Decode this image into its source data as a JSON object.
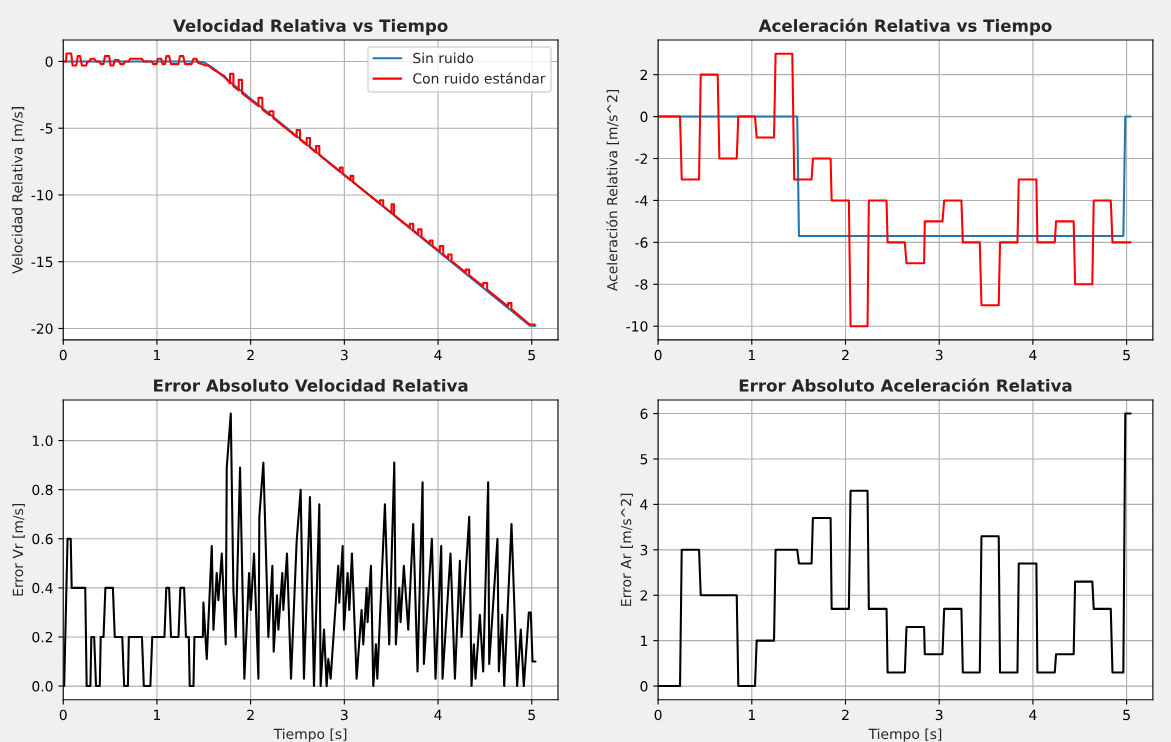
{
  "chart_data": [
    {
      "type": "line",
      "title": "Velocidad Relativa vs Tiempo",
      "ylabel": "Velocidad Relativa [m/s]",
      "xlim": [
        0,
        5.28
      ],
      "ylim": [
        -20.85,
        1.6
      ],
      "xticks": [
        0,
        1,
        2,
        3,
        4,
        5
      ],
      "yticks": [
        -20,
        -15,
        -10,
        -5,
        0
      ],
      "grid": true,
      "legend": "top right",
      "series": [
        {
          "name": "Sin ruido",
          "color": "#1f77b4",
          "x": [
            0,
            1.4,
            1.5,
            1.6,
            4.98,
            5.04
          ],
          "values": [
            0,
            0,
            -0.05,
            -0.5,
            -19.8,
            -19.8
          ]
        },
        {
          "name": "Con ruido estándar",
          "color": "#ff0000",
          "x": [
            0,
            0.03,
            0.035,
            0.085,
            0.1,
            0.14,
            0.155,
            0.18,
            0.2,
            0.245,
            0.26,
            0.28,
            0.295,
            0.33,
            0.35,
            0.385,
            0.4,
            0.43,
            0.445,
            0.49,
            0.505,
            0.535,
            0.55,
            0.59,
            0.61,
            0.645,
            0.66,
            0.7,
            0.715,
            0.84,
            0.857,
            0.945,
            0.96,
            0.995,
            1.01,
            1.045,
            1.06,
            1.085,
            1.1,
            1.13,
            1.15,
            1.23,
            1.245,
            1.28,
            1.3,
            1.37,
            1.39,
            1.42,
            1.44,
            1.52,
            1.55,
            1.6,
            1.72,
            1.78,
            1.78,
            1.816,
            1.816,
            1.873,
            1.873,
            1.908,
            1.908,
            2.083,
            2.083,
            2.125,
            2.125,
            2.2,
            2.2,
            2.243,
            2.243,
            2.491,
            2.491,
            2.527,
            2.527,
            2.598,
            2.598,
            2.633,
            2.633,
            2.697,
            2.697,
            2.733,
            2.733,
            2.953,
            2.953,
            2.982,
            2.982,
            3.067,
            3.067,
            3.095,
            3.095,
            3.38,
            3.38,
            3.415,
            3.415,
            3.504,
            3.504,
            3.529,
            3.529,
            3.699,
            3.699,
            3.735,
            3.735,
            3.788,
            3.788,
            3.824,
            3.824,
            3.913,
            3.913,
            3.941,
            3.941,
            4.019,
            4.019,
            4.055,
            4.055,
            4.108,
            4.108,
            4.144,
            4.144,
            4.296,
            4.296,
            4.332,
            4.332,
            4.481,
            4.481,
            4.524,
            4.524,
            4.748,
            4.748,
            4.783,
            4.783,
            4.979,
            5.032
          ],
          "values": [
            0,
            0,
            0.6,
            0.6,
            -0.3,
            -0.3,
            0.4,
            0.4,
            -0.3,
            -0.3,
            0,
            0,
            0.2,
            0.2,
            0,
            0,
            -0.2,
            -0.2,
            0.4,
            0.4,
            -0.3,
            -0.3,
            0.1,
            0.1,
            -0.2,
            -0.2,
            0,
            0,
            0.2,
            0.2,
            0,
            0,
            -0.2,
            -0.2,
            0.2,
            0.2,
            -0.2,
            -0.2,
            0.4,
            0.4,
            -0.2,
            -0.2,
            0.4,
            0.4,
            -0.2,
            -0.2,
            0.2,
            0.2,
            -0.1,
            -0.3,
            -0.3,
            -0.6,
            -1.1,
            -1.65,
            -0.93,
            -0.93,
            -1.85,
            -2.17,
            -1.38,
            -1.38,
            -2.37,
            -3.35,
            -2.73,
            -2.73,
            -3.59,
            -4.01,
            -3.73,
            -3.73,
            -4.25,
            -5.65,
            -5.14,
            -5.14,
            -5.85,
            -6.25,
            -5.74,
            -5.74,
            -6.45,
            -6.81,
            -6.34,
            -6.34,
            -7.01,
            -8.25,
            -7.94,
            -7.94,
            -8.41,
            -8.89,
            -8.57,
            -8.57,
            -9.05,
            -10.65,
            -10.4,
            -10.4,
            -10.85,
            -11.35,
            -10.7,
            -10.7,
            -11.49,
            -12.45,
            -12.16,
            -12.16,
            -12.65,
            -12.95,
            -12.58,
            -12.58,
            -13.15,
            -13.65,
            -13.41,
            -13.41,
            -13.81,
            -14.25,
            -13.83,
            -13.83,
            -14.45,
            -14.75,
            -14.46,
            -14.46,
            -14.95,
            -15.81,
            -15.59,
            -15.59,
            -16.01,
            -16.85,
            -16.59,
            -16.59,
            -17.09,
            -18.35,
            -18.1,
            -18.1,
            -18.55,
            -19.7,
            -19.7
          ]
        }
      ]
    },
    {
      "type": "line",
      "title": "Aceleración Relativa vs Tiempo",
      "ylabel": "Aceleración Relativa [m/s^2]",
      "xlim": [
        0,
        5.28
      ],
      "ylim": [
        -10.65,
        3.65
      ],
      "xticks": [
        0,
        1,
        2,
        3,
        4,
        5
      ],
      "yticks": [
        -10,
        -8,
        -6,
        -4,
        -2,
        0,
        2
      ],
      "grid": true,
      "series": [
        {
          "color": "#1f77b4",
          "x": [
            0,
            1.485,
            1.503,
            4.965,
            4.986,
            5.043
          ],
          "values": [
            0,
            0,
            -5.7,
            -5.7,
            0,
            0
          ]
        },
        {
          "color": "#ff0000",
          "x": [
            0,
            0.234,
            0.252,
            0.437,
            0.455,
            0.636,
            0.654,
            0.839,
            0.856,
            1.034,
            1.052,
            1.237,
            1.254,
            1.432,
            1.453,
            1.638,
            1.652,
            1.841,
            1.852,
            2.036,
            2.054,
            2.235,
            2.249,
            2.438,
            2.449,
            2.633,
            2.651,
            2.839,
            2.846,
            3.035,
            3.053,
            3.237,
            3.252,
            3.433,
            3.451,
            3.635,
            3.649,
            3.835,
            3.849,
            4.037,
            4.048,
            4.233,
            4.247,
            4.435,
            4.45,
            4.634,
            4.649,
            4.831,
            4.849,
            5.043
          ],
          "values": [
            0,
            0,
            -3,
            -3,
            2,
            2,
            -2,
            -2,
            0,
            0,
            -1,
            -1,
            3,
            3,
            -3,
            -3,
            -2,
            -2,
            -4,
            -4,
            -10,
            -10,
            -4,
            -4,
            -6,
            -6,
            -7,
            -7,
            -5,
            -5,
            -4,
            -4,
            -6,
            -6,
            -9,
            -9,
            -6,
            -6,
            -3,
            -3,
            -6,
            -6,
            -5,
            -5,
            -8,
            -8,
            -4,
            -4,
            -6,
            -6
          ]
        }
      ]
    },
    {
      "type": "line",
      "title": "Error Absoluto Velocidad Relativa",
      "xlabel": "Tiempo [s]",
      "ylabel": "Error Vr [m/s]",
      "xlim": [
        0,
        5.28
      ],
      "ylim": [
        -0.0555,
        1.1655
      ],
      "xticks": [
        0,
        1,
        2,
        3,
        4,
        5
      ],
      "yticks": [
        {
          "value": 0,
          "label": "0.0"
        },
        0.2,
        0.4,
        0.6,
        0.8,
        {
          "value": 1,
          "label": "1.0"
        }
      ],
      "grid": true,
      "series": [
        {
          "color": "#000000",
          "x": [
            0,
            0.01,
            0.046,
            0.08,
            0.09,
            0.235,
            0.25,
            0.29,
            0.3,
            0.33,
            0.35,
            0.39,
            0.4,
            0.43,
            0.45,
            0.53,
            0.55,
            0.63,
            0.65,
            0.69,
            0.7,
            0.84,
            0.86,
            0.93,
            0.95,
            1.08,
            1.1,
            1.13,
            1.15,
            1.23,
            1.25,
            1.29,
            1.31,
            1.34,
            1.35,
            1.39,
            1.4,
            1.49,
            1.496,
            1.532,
            1.585,
            1.603,
            1.638,
            1.656,
            1.692,
            1.734,
            1.745,
            1.788,
            1.816,
            1.841,
            1.887,
            1.933,
            1.983,
            2.001,
            2.036,
            2.083,
            2.093,
            2.136,
            2.189,
            2.232,
            2.246,
            2.281,
            2.296,
            2.338,
            2.349,
            2.388,
            2.431,
            2.491,
            2.534,
            2.569,
            2.633,
            2.676,
            2.733,
            2.747,
            2.783,
            2.811,
            2.829,
            2.854,
            2.935,
            2.946,
            2.982,
            2.996,
            3.035,
            3.053,
            3.081,
            3.131,
            3.184,
            3.202,
            3.238,
            3.248,
            3.284,
            3.309,
            3.337,
            3.352,
            3.433,
            3.479,
            3.533,
            3.55,
            3.586,
            3.6,
            3.635,
            3.682,
            3.735,
            3.781,
            3.835,
            3.849,
            3.934,
            3.973,
            4.034,
            4.048,
            4.133,
            4.18,
            4.233,
            4.251,
            4.333,
            4.357,
            4.382,
            4.4,
            4.446,
            4.482,
            4.535,
            4.546,
            4.634,
            4.649,
            4.684,
            4.706,
            4.784,
            4.844,
            4.883,
            4.915,
            4.969,
            4.99,
            5.008,
            5.04
          ],
          "values": [
            0,
            0,
            0.6,
            0.6,
            0.4,
            0.4,
            0,
            0,
            0.2,
            0.2,
            0,
            0,
            0.2,
            0.2,
            0.4,
            0.4,
            0.2,
            0.2,
            0,
            0,
            0.2,
            0.2,
            0,
            0,
            0.2,
            0.2,
            0.4,
            0.4,
            0.2,
            0.2,
            0.4,
            0.4,
            0.2,
            0.2,
            0,
            0,
            0.2,
            0.2,
            0.34,
            0.11,
            0.57,
            0.23,
            0.46,
            0.35,
            0.54,
            0.17,
            0.89,
            1.11,
            0.39,
            0.2,
            0.89,
            0.03,
            0.46,
            0.31,
            0.54,
            0.03,
            0.69,
            0.91,
            0.2,
            0.49,
            0.14,
            0.37,
            0.23,
            0.46,
            0.31,
            0.54,
            0.03,
            0.59,
            0.8,
            0.03,
            0.77,
            0,
            0.74,
            0,
            0.23,
            0,
            0.11,
            0.03,
            0.49,
            0.34,
            0.57,
            0.23,
            0.46,
            0.31,
            0.54,
            0.03,
            0.31,
            0.17,
            0.4,
            0.26,
            0.49,
            0,
            0.17,
            0.03,
            0.74,
            0.17,
            0.91,
            0.17,
            0.4,
            0.26,
            0.49,
            0.23,
            0.66,
            0.06,
            0.83,
            0.09,
            0.6,
            0.03,
            0.57,
            0.03,
            0.54,
            0.03,
            0.51,
            0.2,
            0.69,
            0,
            0.17,
            0.03,
            0.29,
            0.06,
            0.83,
            0.09,
            0.6,
            0.06,
            0.29,
            0,
            0.66,
            0,
            0.23,
            0,
            0.3,
            0.3,
            0.1,
            0.1
          ]
        }
      ]
    },
    {
      "type": "line",
      "title": "Error Absoluto Aceleración Relativa",
      "xlabel": "Tiempo [s]",
      "ylabel": "Error Ar [m/s^2]",
      "xlim": [
        0,
        5.28
      ],
      "ylim": [
        -0.3,
        6.3
      ],
      "xticks": [
        0,
        1,
        2,
        3,
        4,
        5
      ],
      "yticks": [
        0,
        1,
        2,
        3,
        4,
        5,
        6
      ],
      "grid": true,
      "series": [
        {
          "color": "#000000",
          "x": [
            0,
            0.234,
            0.252,
            0.437,
            0.455,
            0.839,
            0.856,
            1.034,
            1.052,
            1.237,
            1.254,
            1.485,
            1.503,
            1.638,
            1.652,
            1.841,
            1.852,
            2.036,
            2.054,
            2.235,
            2.249,
            2.438,
            2.449,
            2.633,
            2.651,
            2.839,
            2.846,
            3.035,
            3.053,
            3.237,
            3.252,
            3.433,
            3.451,
            3.635,
            3.649,
            3.835,
            3.849,
            4.037,
            4.048,
            4.233,
            4.247,
            4.435,
            4.45,
            4.634,
            4.649,
            4.831,
            4.849,
            4.965,
            4.986,
            5.043
          ],
          "values": [
            0,
            0,
            3,
            3,
            2,
            2,
            0,
            0,
            1,
            1,
            3,
            3,
            2.7,
            2.7,
            3.7,
            3.7,
            1.7,
            1.7,
            4.3,
            4.3,
            1.7,
            1.7,
            0.3,
            0.3,
            1.3,
            1.3,
            0.7,
            0.7,
            1.7,
            1.7,
            0.3,
            0.3,
            3.3,
            3.3,
            0.3,
            0.3,
            2.7,
            2.7,
            0.3,
            0.3,
            0.7,
            0.7,
            2.3,
            2.3,
            1.7,
            1.7,
            0.3,
            0.3,
            6,
            6
          ]
        }
      ]
    }
  ]
}
